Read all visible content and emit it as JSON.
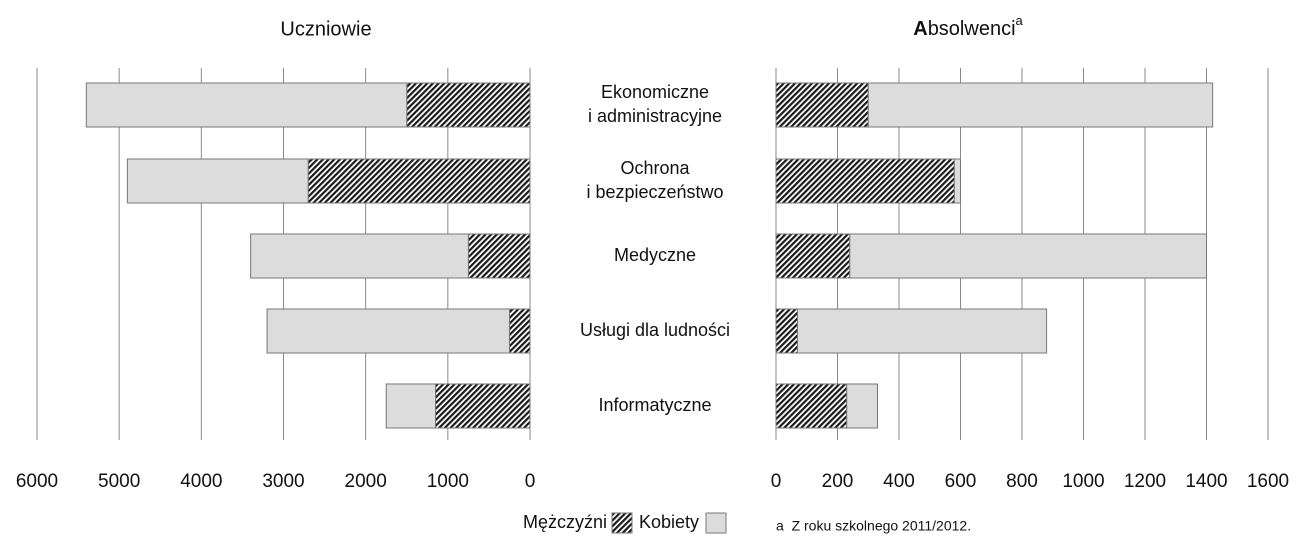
{
  "chart_data": {
    "type": "bar",
    "orientation": "horizontal",
    "stacked": true,
    "categories": [
      [
        "Ekonomiczne",
        "i administracyjne"
      ],
      [
        "Ochrona",
        "i bezpieczeństwo"
      ],
      [
        "Medyczne"
      ],
      [
        "Usługi dla ludności"
      ],
      [
        "Informatyczne"
      ]
    ],
    "panels": [
      {
        "title": "Uczniowie",
        "xlim": [
          6000,
          0
        ],
        "xticks": [
          6000,
          5000,
          4000,
          3000,
          2000,
          1000,
          0
        ],
        "grid": true,
        "series": [
          {
            "name": "Mężczyźni",
            "color": "#1a1a1a",
            "pattern": "hatch",
            "values": [
              1500,
              2700,
              750,
              250,
              1150
            ]
          },
          {
            "name": "Kobiety",
            "color": "#dcdcdc",
            "pattern": "solid",
            "values": [
              3900,
              2200,
              2650,
              2950,
              600
            ]
          }
        ]
      },
      {
        "title": "Absolwenci",
        "title_note": "a",
        "xlim": [
          0,
          1600
        ],
        "xticks": [
          0,
          200,
          400,
          600,
          800,
          1000,
          1200,
          1400,
          1600
        ],
        "grid": true,
        "series": [
          {
            "color": "#1a1a1a",
            "pattern": "hatch",
            "values": [
              300,
              580,
              240,
              70,
              230
            ]
          },
          {
            "color": "#dcdcdc",
            "pattern": "solid",
            "values": [
              1120,
              20,
              1160,
              810,
              100
            ]
          }
        ]
      }
    ],
    "footnote": "a  Z roku szkolnego 2011/2012."
  }
}
